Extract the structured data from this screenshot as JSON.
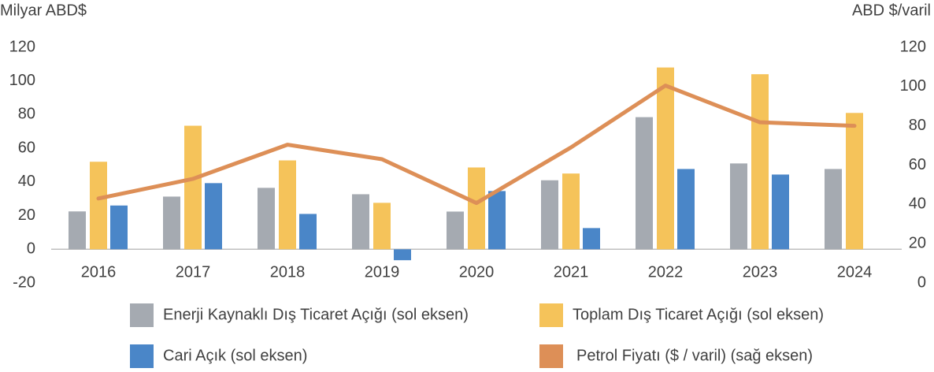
{
  "chart_data": {
    "type": "bar",
    "y_label": "Milyar ABD$",
    "y2_label": "ABD $/varil",
    "categories": [
      "2016",
      "2017",
      "2018",
      "2019",
      "2020",
      "2021",
      "2022",
      "2023",
      "2024"
    ],
    "series": [
      {
        "name": "Enerji Kaynaklı Dış Ticaret Açığı (sol eksen)",
        "type": "bar",
        "color": "#a5aab1",
        "values": [
          22.5,
          31.3,
          36.5,
          32.7,
          22.4,
          41,
          78.5,
          51,
          47.7
        ]
      },
      {
        "name": "Toplam Dış Ticaret Açığı (sol eksen)",
        "type": "bar",
        "color": "#f5c35a",
        "values": [
          52,
          73.4,
          52.8,
          27.6,
          48.6,
          45,
          108,
          104,
          81
        ]
      },
      {
        "name": "Cari Açık (sol eksen)",
        "type": "bar",
        "color": "#4a86c8",
        "values": [
          26,
          39.3,
          21,
          -6.5,
          34.6,
          12.6,
          47.7,
          44.4,
          null
        ]
      },
      {
        "name": "Petrol Fiyatı ($ / varil) (sağ eksen)",
        "type": "line",
        "axis": "y2",
        "color": "#dd8f57",
        "values": [
          43,
          53,
          70.4,
          63,
          40.7,
          69,
          100.5,
          81.8,
          80
        ]
      }
    ],
    "ylim": [
      -20,
      120
    ],
    "yticks": [
      -20,
      0,
      20,
      40,
      60,
      80,
      100,
      120
    ],
    "y2lim": [
      0,
      120
    ],
    "y2ticks": [
      0,
      20,
      40,
      60,
      80,
      100,
      120
    ],
    "grid": false
  }
}
